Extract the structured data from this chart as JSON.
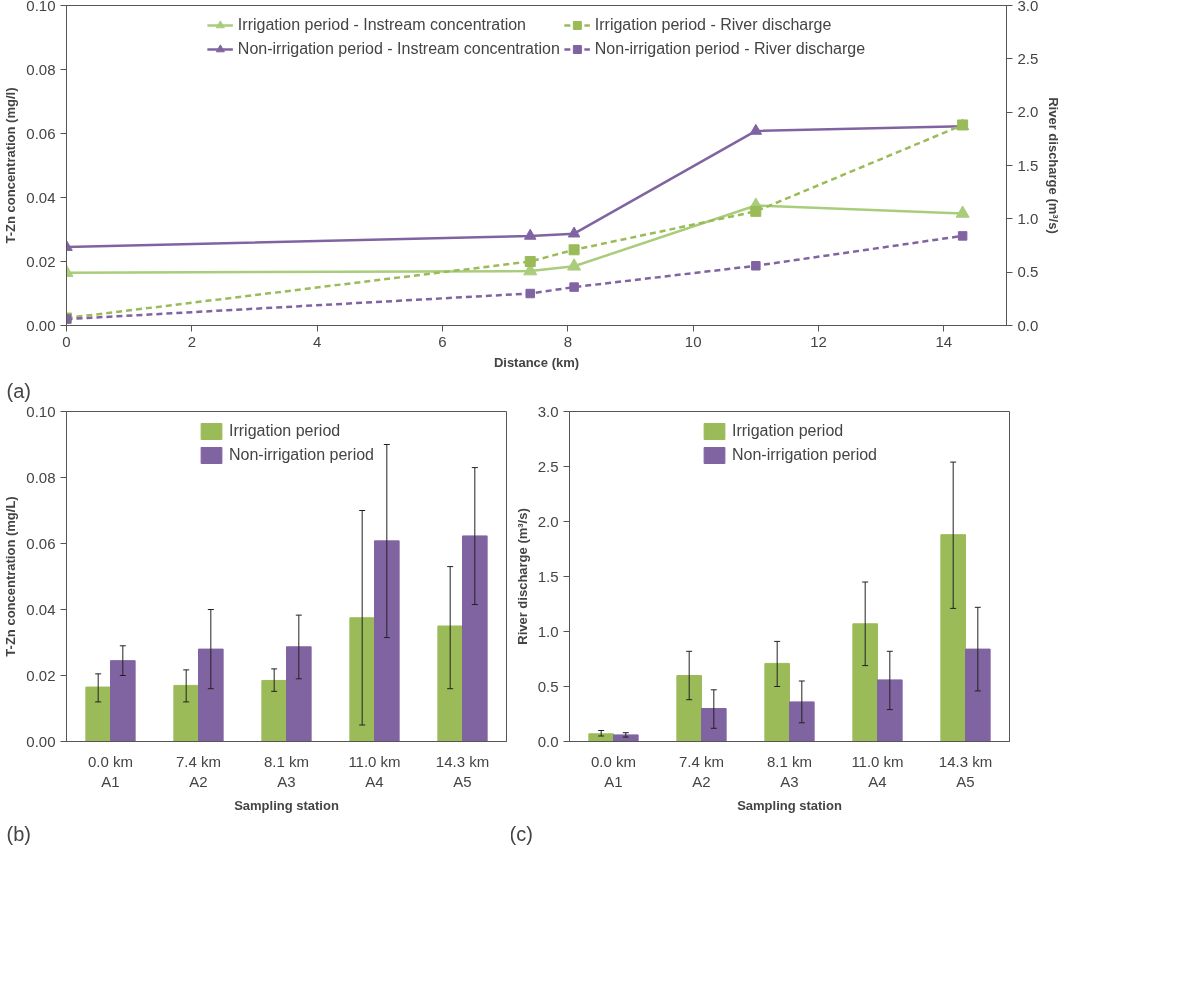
{
  "chart_data": [
    {
      "type": "line",
      "xlabel": "Distance (km)",
      "ylabel": "T-Zn concentration (mg/l)",
      "y2label": "River discharge (m³/s)",
      "x": [
        0,
        7.4,
        8.1,
        11.0,
        14.3
      ],
      "series": [
        {
          "name": "Irrigation period - Instream concentration",
          "color": "#a9cd7c",
          "marker": "triangle",
          "line_style": "solid",
          "values": [
            0.0165,
            0.017,
            0.0185,
            0.0375,
            0.035
          ]
        },
        {
          "name": "Non-irrigation period - Instream concentration",
          "color": "#8064a2",
          "marker": "triangle",
          "line_style": "solid",
          "values": [
            0.0245,
            0.028,
            0.0287,
            0.0608,
            0.0623
          ]
        },
        {
          "name": "Irrigation period - River discharge",
          "color": "#9bbb59",
          "marker": "square",
          "line_style": "dashed",
          "axis": "y2",
          "values": [
            0.07,
            0.6,
            0.71,
            1.07,
            1.88
          ]
        },
        {
          "name": "Non-irrigation period - River discharge",
          "color": "#8064a2",
          "marker": "square",
          "line_style": "dashed",
          "axis": "y2",
          "values": [
            0.06,
            0.3,
            0.36,
            0.56,
            0.84
          ]
        }
      ],
      "xlim": [
        0,
        15
      ],
      "xticks": [
        0,
        2,
        4,
        6,
        8,
        10,
        12,
        14
      ],
      "ylim": [
        0,
        0.1
      ],
      "yticks": [
        {
          "value": 0,
          "label": "0.00"
        },
        {
          "value": 0.02,
          "label": "0.02"
        },
        {
          "value": 0.04,
          "label": "0.04"
        },
        {
          "value": 0.06,
          "label": "0.06"
        },
        {
          "value": 0.08,
          "label": "0.08"
        },
        {
          "value": 0.1,
          "label": "0.10"
        }
      ],
      "y2lim": [
        0,
        3
      ],
      "y2ticks": [
        {
          "value": 0,
          "label": "0.0"
        },
        {
          "value": 0.5,
          "label": "0.5"
        },
        {
          "value": 1,
          "label": "1.0"
        },
        {
          "value": 1.5,
          "label": "1.5"
        },
        {
          "value": 2,
          "label": "2.0"
        },
        {
          "value": 2.5,
          "label": "2.5"
        },
        {
          "value": 3,
          "label": "3.0"
        }
      ],
      "legend": "top",
      "grid": false,
      "annotations": [
        "(a)"
      ]
    },
    {
      "type": "bar",
      "xlabel": "Sampling station",
      "ylabel": "T-Zn concentration (mg/L)",
      "categories": [
        "0.0 km\nA1",
        "7.4 km\nA2",
        "8.1 km\nA3",
        "11.0 km\nA4",
        "14.3 km\nA5"
      ],
      "series": [
        {
          "name": "Irrigation period",
          "color": "#9bbb59",
          "values": [
            0.0165,
            0.017,
            0.0185,
            0.0375,
            0.035
          ],
          "errors": [
            [
              0.012,
              0.0205
            ],
            [
              0.012,
              0.0217
            ],
            [
              0.0152,
              0.022
            ],
            [
              0.005,
              0.07
            ],
            [
              0.016,
              0.053
            ]
          ]
        },
        {
          "name": "Non-irrigation period",
          "color": "#8064a2",
          "values": [
            0.0245,
            0.028,
            0.0287,
            0.0608,
            0.0623
          ],
          "errors": [
            [
              0.02,
              0.029
            ],
            [
              0.016,
              0.04
            ],
            [
              0.019,
              0.0383
            ],
            [
              0.0315,
              0.09
            ],
            [
              0.0415,
              0.083
            ]
          ]
        }
      ],
      "ylim": [
        0,
        0.1
      ],
      "yticks": [
        {
          "value": 0,
          "label": "0.00"
        },
        {
          "value": 0.02,
          "label": "0.02"
        },
        {
          "value": 0.04,
          "label": "0.04"
        },
        {
          "value": 0.06,
          "label": "0.06"
        },
        {
          "value": 0.08,
          "label": "0.08"
        },
        {
          "value": 0.1,
          "label": "0.10"
        }
      ],
      "legend": "top",
      "grid": false,
      "annotations": [
        "(b)"
      ]
    },
    {
      "type": "bar",
      "xlabel": "Sampling station",
      "ylabel": "River discharge (m³/s)",
      "categories": [
        "0.0 km\nA1",
        "7.4 km\nA2",
        "8.1 km\nA3",
        "11.0 km\nA4",
        "14.3 km\nA5"
      ],
      "series": [
        {
          "name": "Irrigation period",
          "color": "#9bbb59",
          "values": [
            0.07,
            0.6,
            0.71,
            1.07,
            1.88
          ],
          "errors": [
            [
              0.05,
              0.1
            ],
            [
              0.38,
              0.82
            ],
            [
              0.5,
              0.91
            ],
            [
              0.69,
              1.45
            ],
            [
              1.21,
              2.54
            ]
          ]
        },
        {
          "name": "Non-irrigation period",
          "color": "#8064a2",
          "values": [
            0.06,
            0.3,
            0.36,
            0.56,
            0.84
          ],
          "errors": [
            [
              0.04,
              0.08
            ],
            [
              0.12,
              0.47
            ],
            [
              0.17,
              0.55
            ],
            [
              0.29,
              0.82
            ],
            [
              0.46,
              1.22
            ]
          ]
        }
      ],
      "ylim": [
        0,
        3
      ],
      "yticks": [
        {
          "value": 0,
          "label": "0.0"
        },
        {
          "value": 0.5,
          "label": "0.5"
        },
        {
          "value": 1,
          "label": "1.0"
        },
        {
          "value": 1.5,
          "label": "1.5"
        },
        {
          "value": 2,
          "label": "2.0"
        },
        {
          "value": 2.5,
          "label": "2.5"
        },
        {
          "value": 3,
          "label": "3.0"
        }
      ],
      "legend": "top",
      "grid": false,
      "annotations": [
        "(c)"
      ]
    }
  ]
}
